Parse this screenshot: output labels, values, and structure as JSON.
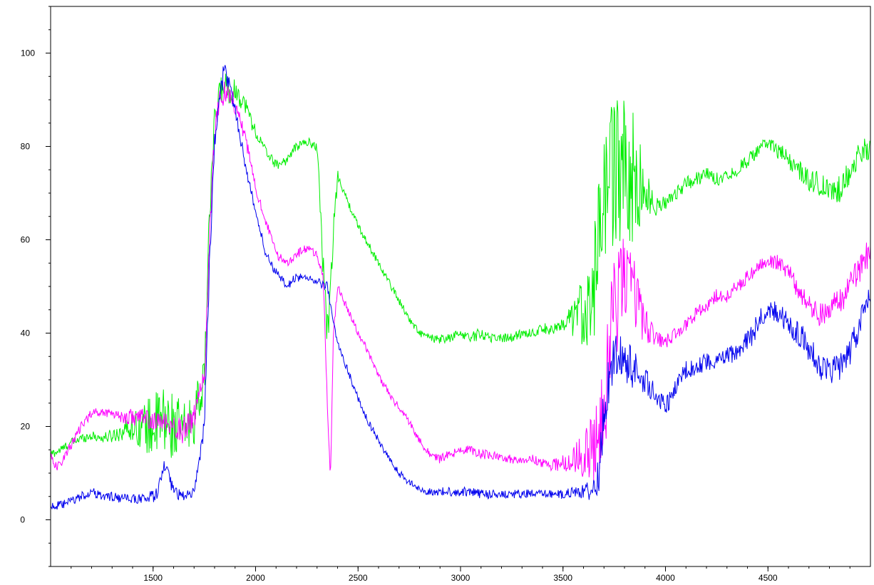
{
  "chart_data": {
    "type": "line",
    "title": "",
    "xlabel": "",
    "ylabel": "",
    "xlim": [
      1000,
      5000
    ],
    "ylim": [
      -10,
      110
    ],
    "grid": false,
    "legend": "none",
    "x_ticks": [
      1500,
      2000,
      2500,
      3000,
      3500,
      4000,
      4500
    ],
    "x_tick_labels": [
      "1500",
      "2000",
      "2500",
      "3000",
      "3500",
      "4000",
      "4500"
    ],
    "y_ticks": [
      0,
      20,
      40,
      60,
      80,
      100
    ],
    "y_tick_labels": [
      "0",
      "20",
      "40",
      "60",
      "80",
      "100"
    ],
    "series": [
      {
        "color": "#00ee00",
        "x": [
          1000,
          1050,
          1100,
          1150,
          1200,
          1250,
          1300,
          1350,
          1400,
          1450,
          1500,
          1550,
          1600,
          1650,
          1700,
          1750,
          1775,
          1800,
          1825,
          1850,
          1875,
          1900,
          1950,
          2000,
          2050,
          2100,
          2150,
          2200,
          2250,
          2300,
          2330,
          2350,
          2380,
          2400,
          2450,
          2500,
          2550,
          2600,
          2650,
          2700,
          2750,
          2800,
          2850,
          2900,
          2950,
          3000,
          3050,
          3100,
          3150,
          3200,
          3250,
          3300,
          3350,
          3400,
          3450,
          3500,
          3550,
          3600,
          3650,
          3700,
          3750,
          3800,
          3850,
          3900,
          3950,
          4000,
          4050,
          4100,
          4150,
          4200,
          4250,
          4300,
          4350,
          4400,
          4450,
          4500,
          4550,
          4600,
          4650,
          4700,
          4750,
          4800,
          4850,
          4900,
          4950,
          5000
        ],
        "y": [
          14,
          15,
          16.5,
          17.5,
          18,
          17.5,
          18,
          19,
          20,
          20,
          20,
          21,
          20,
          19,
          22,
          30,
          65,
          85,
          92,
          93,
          92,
          92,
          89,
          83,
          79,
          76,
          77,
          80,
          81,
          80,
          55,
          40,
          60,
          74,
          68,
          63,
          59,
          55,
          51,
          47,
          43,
          40,
          39,
          38.5,
          39,
          40,
          39,
          40,
          39,
          39,
          39,
          40,
          40,
          41,
          41,
          41,
          43,
          45,
          50,
          70,
          75,
          74,
          73,
          70,
          67,
          68,
          70,
          72,
          73,
          74,
          73,
          74,
          75,
          77,
          79,
          81,
          79,
          77,
          75,
          73,
          72,
          70,
          71,
          75,
          78,
          80
        ],
        "noise": [
          1,
          1,
          1,
          1,
          1,
          1,
          1.5,
          2,
          3,
          5,
          7,
          8,
          7,
          6,
          6,
          4,
          4,
          3,
          3,
          3,
          3,
          2.5,
          2,
          1.5,
          1,
          1,
          1,
          1,
          1,
          1,
          4,
          6,
          5,
          1,
          0.8,
          0.8,
          0.8,
          0.8,
          0.8,
          0.8,
          0.8,
          0.8,
          0.8,
          1,
          1,
          1,
          1,
          1.5,
          1,
          1,
          1,
          1,
          1,
          1,
          1.5,
          2,
          4,
          8,
          12,
          14,
          16,
          16,
          14,
          6,
          2,
          1.5,
          1.5,
          1.5,
          1.5,
          1.5,
          1.5,
          1.5,
          1.5,
          1.5,
          1.5,
          1.5,
          2,
          2,
          2,
          2.5,
          2.5,
          3,
          3,
          3,
          3,
          3
        ]
      },
      {
        "color": "#ff00ff",
        "x": [
          1000,
          1030,
          1060,
          1100,
          1150,
          1200,
          1250,
          1300,
          1350,
          1400,
          1450,
          1500,
          1550,
          1600,
          1650,
          1700,
          1750,
          1775,
          1800,
          1825,
          1850,
          1875,
          1900,
          1950,
          2000,
          2050,
          2100,
          2150,
          2200,
          2250,
          2300,
          2330,
          2350,
          2365,
          2380,
          2400,
          2450,
          2500,
          2550,
          2600,
          2650,
          2700,
          2750,
          2800,
          2850,
          2900,
          2950,
          3000,
          3050,
          3100,
          3150,
          3200,
          3250,
          3300,
          3350,
          3400,
          3450,
          3500,
          3550,
          3600,
          3650,
          3700,
          3750,
          3800,
          3850,
          3900,
          3950,
          4000,
          4050,
          4100,
          4150,
          4200,
          4250,
          4300,
          4350,
          4400,
          4450,
          4500,
          4550,
          4600,
          4650,
          4700,
          4750,
          4800,
          4850,
          4900,
          4950,
          5000
        ],
        "y": [
          14,
          11,
          13,
          16,
          20,
          23,
          23,
          23,
          22,
          22,
          22,
          21,
          21,
          20,
          19,
          22,
          30,
          60,
          83,
          90,
          92,
          91,
          89,
          82,
          71,
          64,
          57,
          55,
          57,
          58,
          57,
          52,
          25,
          8,
          40,
          50,
          45,
          40,
          36,
          31,
          27,
          24,
          21,
          17,
          14,
          13,
          14,
          15,
          15,
          14,
          14,
          13,
          13,
          13,
          13,
          12,
          12,
          12,
          13,
          14,
          15,
          25,
          45,
          52,
          48,
          42,
          39,
          38,
          40,
          42,
          44,
          46,
          48,
          48,
          50,
          52,
          54,
          56,
          55,
          53,
          49,
          46,
          44,
          45,
          47,
          50,
          54,
          58
        ],
        "noise": [
          1,
          1,
          1,
          1,
          1,
          1,
          1,
          1,
          1.5,
          2,
          2,
          2,
          2,
          2,
          3,
          3,
          3,
          3,
          3,
          3,
          2.5,
          2,
          2,
          1.5,
          1,
          1,
          1,
          1,
          1,
          1,
          1,
          1,
          1,
          1,
          1,
          1,
          0.8,
          0.8,
          0.8,
          0.8,
          0.8,
          0.8,
          0.8,
          0.8,
          0.8,
          1,
          1,
          1,
          1,
          1,
          1,
          1,
          1,
          1,
          1,
          1.2,
          1.5,
          2,
          3,
          5,
          8,
          12,
          12,
          10,
          8,
          4,
          2,
          1.5,
          1.5,
          1.5,
          1.5,
          1.5,
          1.5,
          1.5,
          1.5,
          1.5,
          1.5,
          1.5,
          2,
          2,
          2,
          2,
          2.5,
          2.5,
          3,
          3,
          3,
          3
        ]
      },
      {
        "color": "#0000ee",
        "x": [
          1000,
          1050,
          1100,
          1150,
          1200,
          1250,
          1300,
          1350,
          1400,
          1450,
          1500,
          1530,
          1560,
          1580,
          1600,
          1650,
          1700,
          1750,
          1775,
          1800,
          1825,
          1850,
          1875,
          1900,
          1950,
          2000,
          2050,
          2100,
          2150,
          2200,
          2250,
          2300,
          2350,
          2380,
          2400,
          2450,
          2500,
          2550,
          2600,
          2650,
          2700,
          2750,
          2800,
          2850,
          2900,
          2950,
          3000,
          3050,
          3100,
          3150,
          3200,
          3250,
          3300,
          3350,
          3400,
          3450,
          3500,
          3550,
          3600,
          3650,
          3680,
          3700,
          3750,
          3800,
          3850,
          3900,
          3950,
          4000,
          4050,
          4100,
          4150,
          4200,
          4250,
          4300,
          4350,
          4400,
          4450,
          4500,
          4550,
          4600,
          4650,
          4700,
          4750,
          4800,
          4850,
          4900,
          4950,
          5000
        ],
        "y": [
          3,
          3,
          4,
          5,
          6,
          5,
          5,
          4.5,
          4.5,
          4.5,
          5,
          7,
          12,
          8,
          6,
          5,
          6,
          20,
          55,
          80,
          92,
          96,
          93,
          88,
          76,
          66,
          57,
          53,
          50,
          52,
          52,
          51,
          50,
          42,
          38,
          32,
          26,
          21,
          17,
          13,
          10,
          8,
          6.5,
          6,
          6,
          6,
          6,
          6,
          5.5,
          5.5,
          5.5,
          5.5,
          5.5,
          5.5,
          5.5,
          5.5,
          5.5,
          6,
          6,
          7,
          10,
          25,
          35,
          34,
          32,
          30,
          27,
          24,
          28,
          32,
          33,
          34,
          34,
          35,
          36,
          38,
          42,
          46,
          44,
          42,
          40,
          37,
          33,
          32,
          33,
          36,
          42,
          48
        ],
        "noise": [
          1,
          1,
          1,
          1,
          1,
          1,
          1,
          1,
          1,
          1,
          1.5,
          2,
          2,
          2,
          1.5,
          1,
          1,
          2,
          3,
          3,
          3,
          2.5,
          2,
          1.5,
          1,
          1,
          1,
          1,
          1,
          1,
          0.8,
          0.8,
          1,
          1,
          0.8,
          0.8,
          0.8,
          0.8,
          0.8,
          0.8,
          0.8,
          0.8,
          0.8,
          0.8,
          1,
          1,
          1,
          1,
          1,
          1,
          1,
          1,
          1,
          1,
          1,
          1,
          1,
          1,
          1.5,
          3,
          5,
          6,
          5,
          5,
          4,
          3,
          2,
          2,
          2,
          2,
          2,
          2,
          2,
          2,
          2,
          2.5,
          2.5,
          2.5,
          2.5,
          2.5,
          3,
          3,
          3,
          3,
          3,
          3,
          3,
          3
        ]
      }
    ]
  }
}
